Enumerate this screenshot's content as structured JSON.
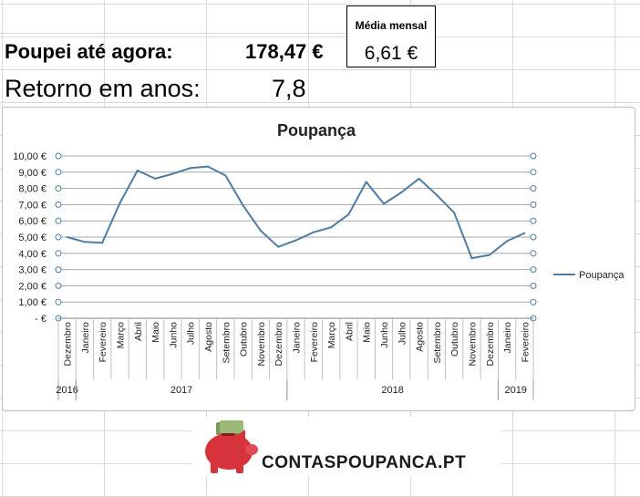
{
  "summary": {
    "saved_label": "Poupei até agora:",
    "saved_value": "178,47 €",
    "return_label": "Retorno em anos:",
    "return_value": "7,8",
    "monthly_header": "Média mensal",
    "monthly_value": "6,61 €"
  },
  "logo": {
    "text": "CONTASPOUPANCA.PT"
  },
  "colors": {
    "line": "#4f7ca3",
    "grid": "#a6a6a6",
    "piggy": "#d6333b"
  },
  "chart_data": {
    "type": "line",
    "title": "Poupança",
    "xlabel": "",
    "ylabel": "",
    "ylim": [
      0,
      10
    ],
    "yticks": [
      "-   €",
      "1,00 €",
      "2,00 €",
      "3,00 €",
      "4,00 €",
      "5,00 €",
      "6,00 €",
      "7,00 €",
      "8,00 €",
      "9,00 €",
      "10,00 €"
    ],
    "grid": true,
    "legend_position": "right",
    "categories": [
      "Dezembro",
      "Janeiro",
      "Fevereiro",
      "Março",
      "Abril",
      "Maio",
      "Junho",
      "Julho",
      "Agosto",
      "Setembro",
      "Outubro",
      "Novembro",
      "Dezembro",
      "Janeiro",
      "Fevereiro",
      "Março",
      "Abril",
      "Maio",
      "Junho",
      "Julho",
      "Agosto",
      "Setembro",
      "Outubro",
      "Novembro",
      "Dezembro",
      "Janeiro",
      "Fevereiro"
    ],
    "year_groups": [
      {
        "label": "2016",
        "start": 0,
        "end": 0
      },
      {
        "label": "2017",
        "start": 1,
        "end": 12
      },
      {
        "label": "2018",
        "start": 13,
        "end": 24
      },
      {
        "label": "2019",
        "start": 25,
        "end": 26
      }
    ],
    "series": [
      {
        "name": "Poupança",
        "values": [
          5.0,
          4.7,
          4.65,
          7.1,
          9.1,
          8.6,
          8.9,
          9.25,
          9.35,
          8.8,
          6.95,
          5.4,
          4.4,
          4.8,
          5.3,
          5.6,
          6.4,
          8.4,
          7.05,
          7.75,
          8.6,
          7.6,
          6.5,
          3.7,
          3.9,
          4.75,
          5.25
        ]
      }
    ]
  }
}
